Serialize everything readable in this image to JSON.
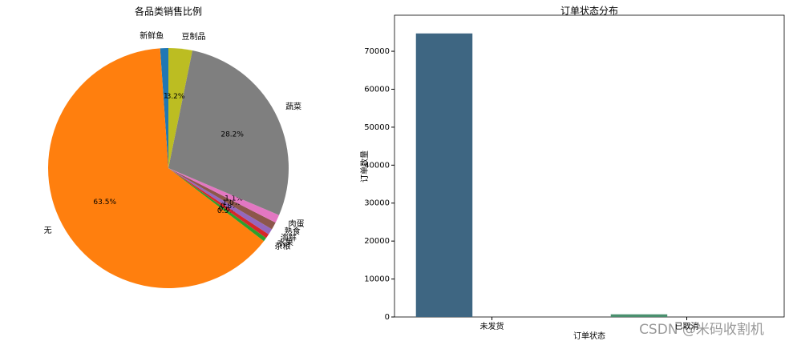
{
  "chart_data": [
    {
      "type": "pie",
      "title": "各品类销售比例",
      "categories": [
        "新鲜鱼",
        "无",
        "杂粮",
        "水果",
        "海鲜",
        "熟食",
        "肉蛋",
        "蔬菜",
        "豆制品"
      ],
      "values": [
        1.1,
        63.5,
        0.5,
        0.6,
        0.8,
        1.0,
        1.1,
        28.2,
        3.2
      ],
      "value_labels": [
        "1.1%",
        "63.5%",
        "0.5%",
        "0.6%",
        "0.8%",
        "1.0%",
        "1.1%",
        "28.2%",
        "3.2%"
      ],
      "colors": [
        "#1f77b4",
        "#ff7f0e",
        "#2ca02c",
        "#d62728",
        "#9467bd",
        "#8c564b",
        "#e377c2",
        "#7f7f7f",
        "#bcbd22"
      ]
    },
    {
      "type": "bar",
      "title": "订单状态分布",
      "x_label": "订单状态",
      "y_label": "订单数量",
      "categories": [
        "未发货",
        "已取消"
      ],
      "values": [
        74700,
        700
      ],
      "colors": [
        "#3e6682",
        "#4a8f6e"
      ],
      "ylim": [
        0,
        79500
      ],
      "yticks": [
        0,
        10000,
        20000,
        30000,
        40000,
        50000,
        60000,
        70000
      ]
    }
  ],
  "watermark": "CSDN @米码收割机"
}
